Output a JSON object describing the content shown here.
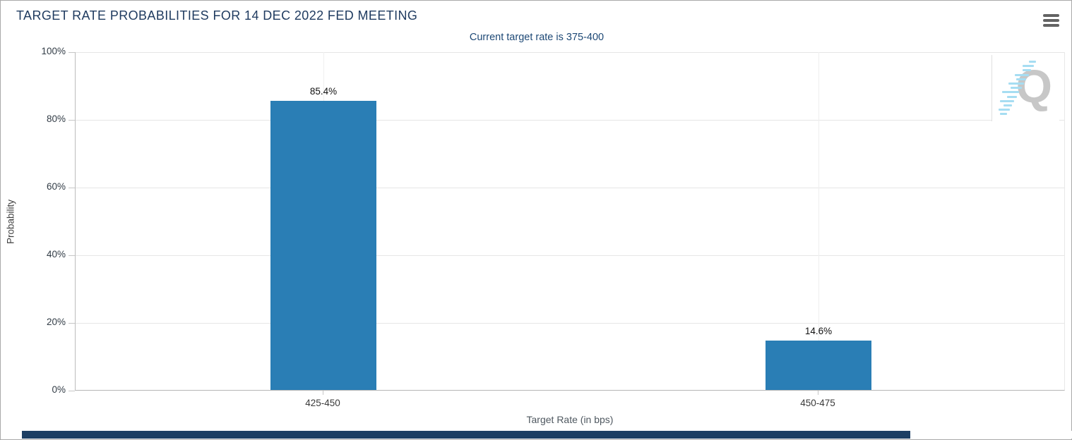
{
  "header": {
    "title": "TARGET RATE PROBABILITIES FOR 14 DEC 2022 FED MEETING",
    "menu_icon": "hamburger-menu-icon"
  },
  "subtitle": "Current target rate is 375-400",
  "watermark_letter": "Q",
  "colors": {
    "bar": "#2a7eb5",
    "title_navy": "#1e3a5f",
    "subtitle_navy": "#1e4976",
    "gridline": "#e6e6e6",
    "scrollbar_thumb_navy": "#1c3e63",
    "watermark_gray": "#c7c7c7",
    "watermark_dash_blue": "#a6ddf2"
  },
  "chart_data": {
    "type": "bar",
    "title": "TARGET RATE PROBABILITIES FOR 14 DEC 2022 FED MEETING",
    "subtitle": "Current target rate is 375-400",
    "categories": [
      "425-450",
      "450-475"
    ],
    "values": [
      85.4,
      14.6
    ],
    "value_labels": [
      "85.4%",
      "14.6%"
    ],
    "xlabel": "Target Rate (in bps)",
    "ylabel": "Probability",
    "ylim": [
      0,
      100
    ],
    "ytick_labels": [
      "0%",
      "20%",
      "40%",
      "60%",
      "80%",
      "100%"
    ],
    "ytick_values": [
      0,
      20,
      40,
      60,
      80,
      100
    ],
    "grid": true,
    "legend": "none",
    "bar_color": "#2a7eb5"
  }
}
